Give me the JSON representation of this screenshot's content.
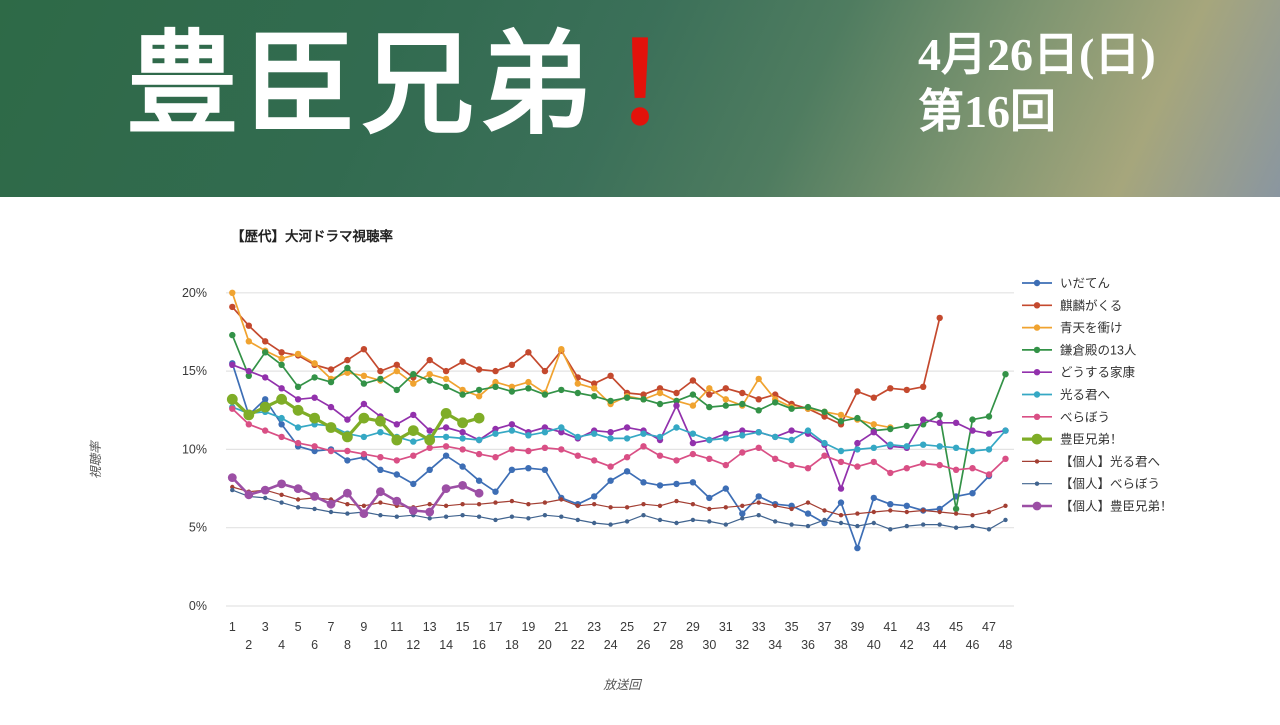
{
  "header": {
    "title": "豊臣兄弟",
    "title_exclamation": "！",
    "date_line1": "4月26日(日)",
    "date_line2": "第16回"
  },
  "chart": {
    "title": "【歴代】大河ドラマ視聴率",
    "y_axis_label": "視聴率",
    "x_axis_label": "放送回",
    "y_tick_labels": [
      "0%",
      "5%",
      "10%",
      "15%",
      "20%"
    ],
    "x_ticks_odd": [
      1,
      3,
      5,
      7,
      9,
      11,
      13,
      15,
      17,
      19,
      21,
      23,
      25,
      27,
      29,
      31,
      33,
      35,
      37,
      39,
      41,
      43,
      45,
      47
    ],
    "x_ticks_even": [
      2,
      4,
      6,
      8,
      10,
      12,
      14,
      16,
      18,
      20,
      22,
      24,
      26,
      28,
      30,
      32,
      34,
      36,
      38,
      40,
      42,
      44,
      46,
      48
    ],
    "grid_color": "#e3e3e3",
    "tick_color": "#3a3a3a",
    "title_color": "#222222"
  },
  "chart_data": {
    "type": "line",
    "title": "【歴代】大河ドラマ視聴率",
    "xlabel": "放送回",
    "ylabel": "視聴率",
    "x_range": [
      1,
      48
    ],
    "ylim": [
      0,
      20
    ],
    "y_tick_step": 5,
    "grid": "horizontal",
    "legend_position": "right",
    "series": [
      {
        "name": "いだてん",
        "key": "idaten",
        "color": "#3d6eb5",
        "line_width": 1.7,
        "marker_radius": 3.2,
        "values": [
          15.5,
          12.2,
          13.2,
          11.6,
          10.2,
          9.9,
          10.0,
          9.3,
          9.5,
          8.7,
          8.4,
          7.8,
          8.7,
          9.6,
          8.9,
          8.0,
          7.3,
          8.7,
          8.8,
          8.7,
          6.9,
          6.5,
          7.0,
          8.0,
          8.6,
          7.9,
          7.7,
          7.8,
          7.9,
          6.9,
          7.5,
          5.9,
          7.0,
          6.5,
          6.4,
          5.9,
          5.3,
          6.6,
          3.7,
          6.9,
          6.5,
          6.4,
          6.1,
          6.2,
          7.0,
          7.2,
          8.3
        ]
      },
      {
        "name": "麒麟がくる",
        "key": "kirin-ga-kuru",
        "color": "#c4492e",
        "line_width": 1.7,
        "marker_radius": 3.2,
        "values": [
          19.1,
          17.9,
          16.9,
          16.2,
          16.0,
          15.4,
          15.1,
          15.7,
          16.4,
          15.0,
          15.4,
          14.6,
          15.7,
          15.0,
          15.6,
          15.1,
          15.0,
          15.4,
          16.2,
          15.0,
          16.3,
          14.6,
          14.2,
          14.7,
          13.6,
          13.5,
          13.9,
          13.6,
          14.4,
          13.5,
          13.9,
          13.6,
          13.2,
          13.5,
          12.9,
          12.6,
          12.1,
          11.6,
          13.7,
          13.3,
          13.9,
          13.8,
          14.0,
          18.4
        ]
      },
      {
        "name": "青天を衝け",
        "key": "seiten-wo-tsuke",
        "color": "#f0a330",
        "line_width": 1.7,
        "marker_radius": 3.2,
        "values": [
          20.0,
          16.9,
          16.3,
          15.8,
          16.1,
          15.5,
          14.5,
          14.9,
          14.7,
          14.4,
          15.0,
          14.2,
          14.8,
          14.5,
          13.8,
          13.4,
          14.3,
          14.0,
          14.3,
          13.6,
          16.4,
          14.2,
          13.9,
          12.9,
          13.4,
          13.2,
          13.6,
          13.1,
          12.8,
          13.9,
          13.2,
          12.8,
          14.5,
          13.2,
          12.7,
          12.6,
          12.4,
          12.2,
          11.9,
          11.6,
          11.4
        ]
      },
      {
        "name": "鎌倉殿の13人",
        "key": "kamakura-dono",
        "color": "#339247",
        "line_width": 1.7,
        "marker_radius": 3.2,
        "values": [
          17.3,
          14.7,
          16.2,
          15.4,
          14.0,
          14.6,
          14.3,
          15.2,
          14.2,
          14.5,
          13.8,
          14.8,
          14.4,
          14.0,
          13.5,
          13.8,
          14.0,
          13.7,
          13.9,
          13.5,
          13.8,
          13.6,
          13.4,
          13.1,
          13.3,
          13.2,
          12.9,
          13.1,
          13.5,
          12.7,
          12.8,
          12.9,
          12.5,
          13.0,
          12.6,
          12.7,
          12.4,
          11.8,
          12.0,
          11.2,
          11.3,
          11.5,
          11.6,
          12.2,
          6.2,
          11.9,
          12.1,
          14.8
        ]
      },
      {
        "name": "どうする家康",
        "key": "dousuru-ieyasu",
        "color": "#9231ac",
        "line_width": 1.7,
        "marker_radius": 3.2,
        "values": [
          15.4,
          15.0,
          14.6,
          13.9,
          13.2,
          13.3,
          12.7,
          11.9,
          12.9,
          12.1,
          11.6,
          12.2,
          11.2,
          11.4,
          11.1,
          10.6,
          11.3,
          11.6,
          11.1,
          11.4,
          11.1,
          10.7,
          11.2,
          11.1,
          11.4,
          11.2,
          10.6,
          12.8,
          10.4,
          10.6,
          11.0,
          11.2,
          11.1,
          10.8,
          11.2,
          11.0,
          10.3,
          7.5,
          10.4,
          11.1,
          10.2,
          10.1,
          11.9,
          11.7,
          11.7,
          11.2,
          11.0,
          11.2
        ]
      },
      {
        "name": "光る君へ",
        "key": "hikaru-kimi-e",
        "color": "#35a8c4",
        "line_width": 1.7,
        "marker_radius": 3.2,
        "values": [
          12.7,
          12.3,
          12.4,
          12.0,
          11.4,
          11.6,
          11.5,
          11.0,
          10.8,
          11.1,
          10.8,
          10.5,
          10.8,
          10.8,
          10.7,
          10.6,
          11.0,
          11.2,
          10.9,
          11.1,
          11.4,
          10.8,
          11.0,
          10.7,
          10.7,
          11.0,
          10.8,
          11.4,
          11.0,
          10.6,
          10.7,
          10.9,
          11.1,
          10.8,
          10.6,
          11.2,
          10.4,
          9.9,
          10.0,
          10.1,
          10.3,
          10.2,
          10.3,
          10.2,
          10.1,
          9.9,
          10.0,
          11.2
        ]
      },
      {
        "name": "べらぼう",
        "key": "berabou",
        "color": "#d94f85",
        "line_width": 1.7,
        "marker_radius": 3.2,
        "values": [
          12.6,
          11.6,
          11.2,
          10.8,
          10.4,
          10.2,
          9.9,
          9.9,
          9.7,
          9.5,
          9.3,
          9.6,
          10.1,
          10.2,
          10.0,
          9.7,
          9.5,
          10.0,
          9.9,
          10.1,
          10.0,
          9.6,
          9.3,
          8.9,
          9.5,
          10.2,
          9.6,
          9.3,
          9.7,
          9.4,
          9.0,
          9.8,
          10.1,
          9.4,
          9.0,
          8.8,
          9.6,
          9.2,
          8.9,
          9.2,
          8.5,
          8.8,
          9.1,
          9.0,
          8.7,
          8.8,
          8.4,
          9.4
        ]
      },
      {
        "name": "豊臣兄弟！",
        "key": "toyotomi-kyoudai",
        "color": "#7fad27",
        "line_width": 3.2,
        "marker_radius": 5.4,
        "values": [
          13.2,
          12.2,
          12.7,
          13.2,
          12.5,
          12.0,
          11.4,
          10.8,
          12.0,
          11.8,
          10.6,
          11.2,
          10.6,
          12.3,
          11.7,
          12.0
        ]
      },
      {
        "name": "【個人】光る君へ",
        "key": "kojin-hikaru-kimi-e",
        "color": "#a33f33",
        "line_width": 1.2,
        "marker_radius": 2.2,
        "values": [
          7.6,
          7.3,
          7.4,
          7.1,
          6.8,
          6.9,
          6.8,
          6.5,
          6.4,
          6.6,
          6.4,
          6.3,
          6.5,
          6.4,
          6.5,
          6.5,
          6.6,
          6.7,
          6.5,
          6.6,
          6.8,
          6.4,
          6.5,
          6.3,
          6.3,
          6.5,
          6.4,
          6.7,
          6.5,
          6.2,
          6.3,
          6.4,
          6.6,
          6.4,
          6.2,
          6.6,
          6.1,
          5.8,
          5.9,
          6.0,
          6.1,
          6.0,
          6.1,
          6.0,
          5.9,
          5.8,
          6.0,
          6.4
        ]
      },
      {
        "name": "【個人】べらぼう",
        "key": "kojin-berabou",
        "color": "#41648f",
        "line_width": 1.2,
        "marker_radius": 2.2,
        "values": [
          7.4,
          7.0,
          6.9,
          6.6,
          6.3,
          6.2,
          6.0,
          5.9,
          6.0,
          5.8,
          5.7,
          5.8,
          5.6,
          5.7,
          5.8,
          5.7,
          5.5,
          5.7,
          5.6,
          5.8,
          5.7,
          5.5,
          5.3,
          5.2,
          5.4,
          5.8,
          5.5,
          5.3,
          5.5,
          5.4,
          5.2,
          5.6,
          5.8,
          5.4,
          5.2,
          5.1,
          5.5,
          5.3,
          5.1,
          5.3,
          4.9,
          5.1,
          5.2,
          5.2,
          5.0,
          5.1,
          4.9,
          5.5
        ]
      },
      {
        "name": "【個人】豊臣兄弟！",
        "key": "kojin-toyotomi-kyoudai",
        "color": "#9c4fa5",
        "line_width": 2.6,
        "marker_radius": 4.4,
        "values": [
          8.2,
          7.1,
          7.4,
          7.8,
          7.5,
          7.0,
          6.5,
          7.2,
          5.9,
          7.3,
          6.7,
          6.1,
          6.0,
          7.5,
          7.7,
          7.2
        ]
      }
    ]
  }
}
